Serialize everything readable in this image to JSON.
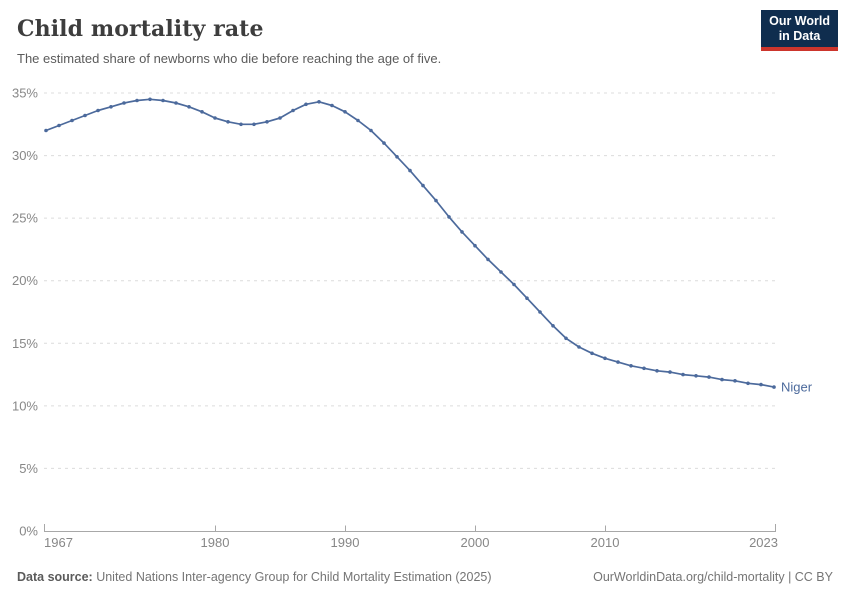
{
  "header": {
    "title": "Child mortality rate",
    "subtitle": "The estimated share of newborns who die before reaching the age of five."
  },
  "logo": {
    "line1": "Our World",
    "line2": "in Data",
    "bg_color": "#0f2d4e",
    "accent_color": "#cc352c"
  },
  "chart_data": {
    "type": "line",
    "title": "Child mortality rate",
    "xlabel": "",
    "ylabel": "",
    "xlim": [
      1967,
      2023
    ],
    "ylim": [
      0,
      35
    ],
    "x_ticks": [
      1967,
      1980,
      1990,
      2000,
      2010,
      2023
    ],
    "y_ticks": [
      "0%",
      "5%",
      "10%",
      "15%",
      "20%",
      "25%",
      "30%",
      "35%"
    ],
    "grid": "horizontal-dashed",
    "legend_position": "end-of-line-label",
    "series": [
      {
        "name": "Niger",
        "color": "#4c6a9c",
        "x": [
          1967,
          1968,
          1969,
          1970,
          1971,
          1972,
          1973,
          1974,
          1975,
          1976,
          1977,
          1978,
          1979,
          1980,
          1981,
          1982,
          1983,
          1984,
          1985,
          1986,
          1987,
          1988,
          1989,
          1990,
          1991,
          1992,
          1993,
          1994,
          1995,
          1996,
          1997,
          1998,
          1999,
          2000,
          2001,
          2002,
          2003,
          2004,
          2005,
          2006,
          2007,
          2008,
          2009,
          2010,
          2011,
          2012,
          2013,
          2014,
          2015,
          2016,
          2017,
          2018,
          2019,
          2020,
          2021,
          2022,
          2023
        ],
        "values": [
          32.0,
          32.4,
          32.8,
          33.2,
          33.6,
          33.9,
          34.2,
          34.4,
          34.5,
          34.4,
          34.2,
          33.9,
          33.5,
          33.0,
          32.7,
          32.5,
          32.5,
          32.7,
          33.0,
          33.6,
          34.1,
          34.3,
          34.0,
          33.5,
          32.8,
          32.0,
          31.0,
          29.9,
          28.8,
          27.6,
          26.4,
          25.1,
          23.9,
          22.8,
          21.7,
          20.7,
          19.7,
          18.6,
          17.5,
          16.4,
          15.4,
          14.7,
          14.2,
          13.8,
          13.5,
          13.2,
          13.0,
          12.8,
          12.7,
          12.5,
          12.4,
          12.3,
          12.1,
          12.0,
          11.8,
          11.7,
          11.5
        ]
      }
    ],
    "colors": {
      "gridline": "#dcdcdc",
      "axis": "#a8a8a8",
      "tick_label": "#878787"
    }
  },
  "footer": {
    "source_label": "Data source:",
    "source_text": " United Nations Inter-agency Group for Child Mortality Estimation (2025)",
    "right_text": "OurWorldinData.org/child-mortality | CC BY"
  }
}
